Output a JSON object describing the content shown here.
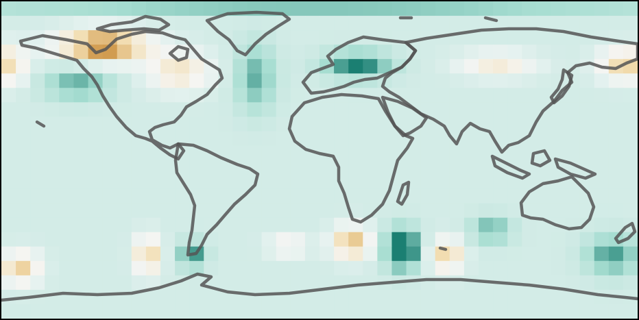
{
  "map": {
    "projection": "equirectangular",
    "coverage": "global",
    "colormap": {
      "negative_strong": "#c07a1e",
      "negative": "#f2dcae",
      "neutral": "#e6f2f0",
      "positive": "#a6ddd1",
      "positive_strong": "#1b7f72"
    },
    "coastline_color": "#555555",
    "frame_color": "#000000",
    "gridcell_count": "44x22"
  }
}
